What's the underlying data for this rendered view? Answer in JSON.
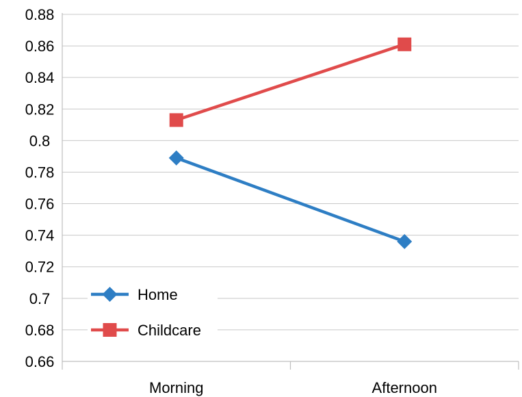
{
  "chart_data": {
    "type": "line",
    "categories": [
      "Morning",
      "Afternoon"
    ],
    "series": [
      {
        "name": "Home",
        "values": [
          0.789,
          0.736
        ],
        "color": "#2E7EC4",
        "marker": "diamond"
      },
      {
        "name": "Childcare",
        "values": [
          0.813,
          0.861
        ],
        "color": "#E04B4B",
        "marker": "square"
      }
    ],
    "y_ticks": [
      "0.66",
      "0.68",
      "0.7",
      "0.72",
      "0.74",
      "0.76",
      "0.78",
      "0.8",
      "0.82",
      "0.84",
      "0.86",
      "0.88"
    ],
    "ylim": [
      0.66,
      0.88
    ],
    "grid": true,
    "legend_position": "bottom-left"
  }
}
